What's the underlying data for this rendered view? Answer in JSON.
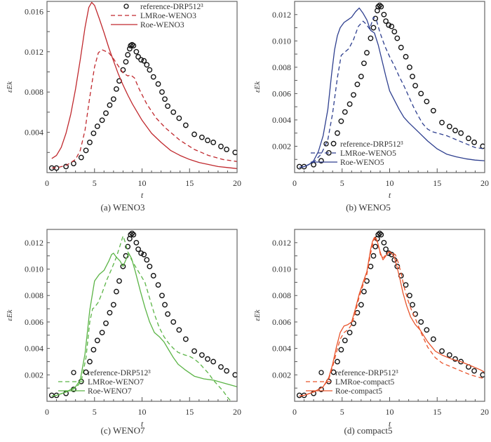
{
  "reference_label": "reference-DRP512³",
  "chart_data": [
    {
      "type": "line",
      "id": "a",
      "caption": "(a) WENO3",
      "xlabel": "t",
      "ylabel": "εEk",
      "xlim": [
        0,
        20
      ],
      "ylim": [
        0,
        0.017
      ],
      "xticks": [
        0,
        5,
        10,
        15,
        20
      ],
      "yticks": [
        0.004,
        0.008,
        0.012,
        0.016
      ],
      "ytick_labels": [
        "0.004",
        "0.008",
        "0.012",
        "0.016"
      ],
      "legend_position": "top-right",
      "color": "#c0282d",
      "series": [
        {
          "name": "reference-DRP512³",
          "style": "circles",
          "x": [
            0.5,
            1.0,
            2.0,
            2.8,
            3.6,
            4.1,
            4.5,
            4.9,
            5.3,
            5.8,
            6.2,
            6.6,
            7.0,
            7.3,
            7.6,
            8.0,
            8.3,
            8.5,
            8.7,
            8.8,
            8.95,
            9.1,
            9.4,
            9.6,
            9.9,
            10.2,
            10.5,
            10.8,
            11.2,
            11.7,
            12.1,
            12.4,
            12.7,
            13.3,
            13.9,
            14.6,
            15.5,
            16.3,
            16.9,
            17.5,
            18.3,
            18.9,
            19.8
          ],
          "y": [
            0.00045,
            0.00045,
            0.0006,
            0.0009,
            0.0015,
            0.0022,
            0.003,
            0.0039,
            0.0046,
            0.0052,
            0.0059,
            0.0067,
            0.0073,
            0.0083,
            0.0091,
            0.0102,
            0.011,
            0.0117,
            0.0123,
            0.0126,
            0.0127,
            0.0126,
            0.012,
            0.0115,
            0.0112,
            0.0111,
            0.0107,
            0.0102,
            0.0095,
            0.0088,
            0.008,
            0.0073,
            0.0066,
            0.006,
            0.0054,
            0.0047,
            0.0038,
            0.0035,
            0.0032,
            0.003,
            0.0026,
            0.0023,
            0.002
          ]
        },
        {
          "name": "LMRoe-WENO3",
          "style": "dashed",
          "x": [
            0.5,
            1,
            2,
            3,
            3.5,
            4,
            4.5,
            5,
            5.4,
            5.8,
            6.5,
            7.0,
            7.5,
            8.0,
            8.5,
            8.8,
            9.2,
            9.7,
            10.5,
            11.5,
            12.5,
            14,
            15.5,
            17,
            18.5,
            20
          ],
          "y": [
            0.00045,
            0.00048,
            0.0007,
            0.0013,
            0.0022,
            0.0042,
            0.0075,
            0.0105,
            0.0119,
            0.0122,
            0.0119,
            0.0113,
            0.0106,
            0.0099,
            0.0096,
            0.0097,
            0.0094,
            0.0083,
            0.0068,
            0.0054,
            0.0044,
            0.0032,
            0.0023,
            0.0017,
            0.0013,
            0.0011
          ]
        },
        {
          "name": "Roe-WENO3",
          "style": "solid",
          "x": [
            0.5,
            1,
            1.5,
            2,
            2.5,
            3,
            3.5,
            4,
            4.4,
            4.7,
            5.0,
            5.5,
            6,
            6.5,
            7,
            7.5,
            8,
            8.5,
            9,
            9.5,
            10,
            11,
            12,
            13,
            14,
            15,
            16,
            17,
            18,
            19,
            20
          ],
          "y": [
            0.0014,
            0.0017,
            0.0025,
            0.0039,
            0.0058,
            0.0083,
            0.0112,
            0.0144,
            0.0164,
            0.0169,
            0.0166,
            0.0153,
            0.0139,
            0.0124,
            0.0111,
            0.0098,
            0.0087,
            0.0077,
            0.0068,
            0.006,
            0.0052,
            0.0039,
            0.003,
            0.0022,
            0.0017,
            0.0013,
            0.001,
            0.0008,
            0.0006,
            0.0005,
            0.0004
          ]
        }
      ]
    },
    {
      "type": "line",
      "id": "b",
      "caption": "(b) WENO5",
      "xlabel": "t",
      "ylabel": "εEk",
      "xlim": [
        0,
        20
      ],
      "ylim": [
        0,
        0.013
      ],
      "xticks": [
        0,
        5,
        10,
        15,
        20
      ],
      "yticks": [
        0.002,
        0.004,
        0.006,
        0.008,
        0.01,
        0.012
      ],
      "ytick_labels": [
        "0.002",
        "0.004",
        "0.006",
        "0.008",
        "0.010",
        "0.012"
      ],
      "legend_position": "bottom-center",
      "color": "#2e3f8f",
      "series": [
        {
          "name": "reference-DRP512³",
          "style": "circles",
          "ref": true
        },
        {
          "name": "LMRoe-WENO5",
          "style": "dashed",
          "x": [
            0.5,
            1,
            2,
            2.8,
            3.5,
            4.0,
            4.5,
            4.9,
            5.2,
            5.7,
            6.2,
            6.7,
            7.2,
            7.5,
            7.9,
            8.3,
            8.6,
            9.0,
            9.5,
            10,
            10.5,
            11,
            11.5,
            12,
            12.5,
            13,
            13.5,
            14,
            14.5,
            15,
            16,
            17,
            18,
            19,
            20
          ],
          "y": [
            0.0004,
            0.00045,
            0.0008,
            0.0014,
            0.0025,
            0.0045,
            0.0072,
            0.0089,
            0.0091,
            0.0094,
            0.0101,
            0.0111,
            0.0115,
            0.0113,
            0.0109,
            0.0118,
            0.0116,
            0.0106,
            0.0096,
            0.0088,
            0.0081,
            0.0073,
            0.0066,
            0.0058,
            0.005,
            0.0043,
            0.0037,
            0.0033,
            0.0031,
            0.003,
            0.0028,
            0.0025,
            0.0022,
            0.0019,
            0.0018
          ]
        },
        {
          "name": "Roe-WENO5",
          "style": "solid",
          "x": [
            0.5,
            1,
            1.5,
            2,
            2.5,
            3,
            3.5,
            3.9,
            4.2,
            4.5,
            4.8,
            5.2,
            5.6,
            6.0,
            6.4,
            6.8,
            7.2,
            7.6,
            8.0,
            8.4,
            8.8,
            9.2,
            9.6,
            10,
            10.5,
            11,
            11.5,
            12,
            13,
            14,
            15,
            16,
            17,
            18,
            19,
            20
          ],
          "y": [
            0.0004,
            0.00045,
            0.0006,
            0.0009,
            0.0016,
            0.0028,
            0.0048,
            0.0075,
            0.0093,
            0.0104,
            0.011,
            0.0114,
            0.0116,
            0.0118,
            0.0122,
            0.0125,
            0.0121,
            0.0116,
            0.0108,
            0.0106,
            0.0097,
            0.0085,
            0.0073,
            0.0062,
            0.0055,
            0.0048,
            0.0042,
            0.0038,
            0.0031,
            0.0024,
            0.0018,
            0.0014,
            0.0012,
            0.00105,
            0.00095,
            0.0009
          ]
        }
      ]
    },
    {
      "type": "line",
      "id": "c",
      "caption": "(c) WENO7",
      "xlabel": "t",
      "ylabel": "εEk",
      "xlim": [
        0,
        20
      ],
      "ylim": [
        0,
        0.013
      ],
      "xticks": [
        0,
        5,
        10,
        15,
        20
      ],
      "yticks": [
        0.002,
        0.004,
        0.006,
        0.008,
        0.01,
        0.012
      ],
      "ytick_labels": [
        "0.002",
        "0.004",
        "0.006",
        "0.008",
        "0.010",
        "0.012"
      ],
      "legend_position": "bottom-center",
      "color": "#5bb446",
      "series": [
        {
          "name": "reference-DRP512³",
          "style": "circles",
          "ref": true
        },
        {
          "name": "LMRoe-WENO7",
          "style": "dashed",
          "x": [
            0.5,
            1,
            2,
            3,
            3.6,
            4.1,
            4.5,
            4.8,
            5.0,
            5.4,
            5.8,
            6.3,
            6.8,
            7.3,
            7.7,
            8.0,
            8.2,
            8.5,
            8.9,
            9.3,
            9.8,
            10.3,
            10.8,
            11.3,
            11.8,
            12.3,
            12.8,
            13.3,
            13.8,
            14.5,
            15,
            15.5,
            16,
            16.5,
            17,
            17.5,
            18,
            18.5,
            19,
            19.5,
            20
          ],
          "y": [
            0.0004,
            0.00045,
            0.0007,
            0.001,
            0.0015,
            0.0033,
            0.006,
            0.007,
            0.0071,
            0.0075,
            0.0082,
            0.0092,
            0.01,
            0.0109,
            0.0118,
            0.0125,
            0.0121,
            0.0113,
            0.0107,
            0.0102,
            0.0096,
            0.009,
            0.0078,
            0.0066,
            0.0056,
            0.0049,
            0.0044,
            0.004,
            0.0037,
            0.0035,
            0.0034,
            0.0032,
            0.0029,
            0.0025,
            0.0021,
            0.0016,
            0.0012,
            0.0008,
            0.0003,
            -0.0001,
            -0.0005
          ]
        },
        {
          "name": "Roe-WENO7",
          "style": "solid",
          "x": [
            0.5,
            1,
            2,
            3,
            3.5,
            4.0,
            4.5,
            5.0,
            5.5,
            6.0,
            6.5,
            6.8,
            7.0,
            7.3,
            7.7,
            8.0,
            8.3,
            8.6,
            8.9,
            9.3,
            9.8,
            10.3,
            10.8,
            11.3,
            11.8,
            12.3,
            12.8,
            13.3,
            13.8,
            14.5,
            15.5,
            16.5,
            17.5,
            18.5,
            19.5,
            20
          ],
          "y": [
            0.0004,
            0.00045,
            0.0007,
            0.0011,
            0.0016,
            0.0036,
            0.0069,
            0.0091,
            0.0096,
            0.0099,
            0.0106,
            0.0111,
            0.0112,
            0.0109,
            0.0106,
            0.0102,
            0.0107,
            0.0112,
            0.0108,
            0.0098,
            0.0084,
            0.0071,
            0.006,
            0.0052,
            0.0049,
            0.0045,
            0.0039,
            0.0033,
            0.0028,
            0.0024,
            0.0019,
            0.0017,
            0.0016,
            0.0014,
            0.0012,
            0.0011
          ]
        }
      ]
    },
    {
      "type": "line",
      "id": "d",
      "caption": "(d) compact5",
      "xlabel": "t",
      "ylabel": "εEk",
      "xlim": [
        0,
        20
      ],
      "ylim": [
        0,
        0.013
      ],
      "xticks": [
        0,
        5,
        10,
        15,
        20
      ],
      "yticks": [
        0.002,
        0.004,
        0.006,
        0.008,
        0.01,
        0.012
      ],
      "ytick_labels": [
        "0.002",
        "0.004",
        "0.006",
        "0.008",
        "0.010",
        "0.012"
      ],
      "legend_position": "bottom-center",
      "color": "#e8532b",
      "series": [
        {
          "name": "reference-DRP512³",
          "style": "circles",
          "ref": true
        },
        {
          "name": "LMRoe-compact5",
          "style": "dashed",
          "x": [
            0.5,
            1,
            2,
            3,
            3.6,
            4.0,
            4.4,
            4.8,
            5.2,
            5.6,
            6.0,
            6.4,
            6.8,
            7.2,
            7.6,
            8.0,
            8.3,
            8.5,
            8.8,
            9.1,
            9.4,
            9.7,
            10.0,
            10.3,
            10.6,
            10.9,
            11.2,
            11.5,
            11.9,
            12.3,
            12.8,
            13.3,
            14,
            14.8,
            15.5,
            16.5,
            17.5,
            18.5,
            19.5,
            20
          ],
          "y": [
            0.0004,
            0.00045,
            0.0007,
            0.0011,
            0.0017,
            0.0026,
            0.0037,
            0.0047,
            0.0052,
            0.0054,
            0.0058,
            0.0067,
            0.0079,
            0.0088,
            0.0096,
            0.0112,
            0.0121,
            0.0125,
            0.0118,
            0.0109,
            0.0109,
            0.0112,
            0.0113,
            0.0112,
            0.0111,
            0.0105,
            0.0097,
            0.0087,
            0.0077,
            0.0069,
            0.0061,
            0.0052,
            0.0041,
            0.0033,
            0.0029,
            0.0026,
            0.0023,
            0.002,
            0.0018,
            0.0017
          ]
        },
        {
          "name": "Roe-compact5",
          "style": "solid",
          "x": [
            0.5,
            1,
            2,
            3,
            3.6,
            4.0,
            4.4,
            4.8,
            5.2,
            5.6,
            6.0,
            6.4,
            6.8,
            7.2,
            7.6,
            8.0,
            8.2,
            8.4,
            8.7,
            9.0,
            9.3,
            9.6,
            9.9,
            10.2,
            10.5,
            10.8,
            11.1,
            11.4,
            11.8,
            12.2,
            12.7,
            13.2,
            14,
            14.8,
            15.5,
            16.5,
            17.5,
            18.5,
            19.5,
            20
          ],
          "y": [
            0.0004,
            0.00045,
            0.0007,
            0.0011,
            0.0018,
            0.0028,
            0.0041,
            0.0052,
            0.0057,
            0.0058,
            0.006,
            0.007,
            0.0081,
            0.009,
            0.0098,
            0.0115,
            0.0121,
            0.0124,
            0.0121,
            0.0113,
            0.0107,
            0.011,
            0.0113,
            0.0112,
            0.0109,
            0.0101,
            0.0092,
            0.0082,
            0.0072,
            0.0064,
            0.0058,
            0.0054,
            0.0045,
            0.0038,
            0.0035,
            0.0032,
            0.003,
            0.0027,
            0.0024,
            0.0022
          ]
        }
      ]
    }
  ],
  "reference_points": {
    "x": [
      0.5,
      1.0,
      2.0,
      2.8,
      3.6,
      4.1,
      4.5,
      4.9,
      5.3,
      5.8,
      6.2,
      6.6,
      7.0,
      7.3,
      7.6,
      8.0,
      8.3,
      8.5,
      8.7,
      8.8,
      8.95,
      9.1,
      9.4,
      9.6,
      9.9,
      10.2,
      10.5,
      10.8,
      11.2,
      11.7,
      12.1,
      12.4,
      12.7,
      13.3,
      13.9,
      14.6,
      15.5,
      16.3,
      16.9,
      17.5,
      18.3,
      18.9,
      19.8
    ],
    "y": [
      0.00045,
      0.00045,
      0.0006,
      0.0009,
      0.0015,
      0.0022,
      0.003,
      0.0039,
      0.0046,
      0.0052,
      0.0059,
      0.0067,
      0.0073,
      0.0083,
      0.0091,
      0.0102,
      0.011,
      0.0117,
      0.0123,
      0.0126,
      0.0127,
      0.0126,
      0.012,
      0.0115,
      0.0112,
      0.0111,
      0.0107,
      0.0102,
      0.0095,
      0.0088,
      0.008,
      0.0073,
      0.0066,
      0.006,
      0.0054,
      0.0047,
      0.0038,
      0.0035,
      0.0032,
      0.003,
      0.0026,
      0.0023,
      0.002
    ]
  }
}
